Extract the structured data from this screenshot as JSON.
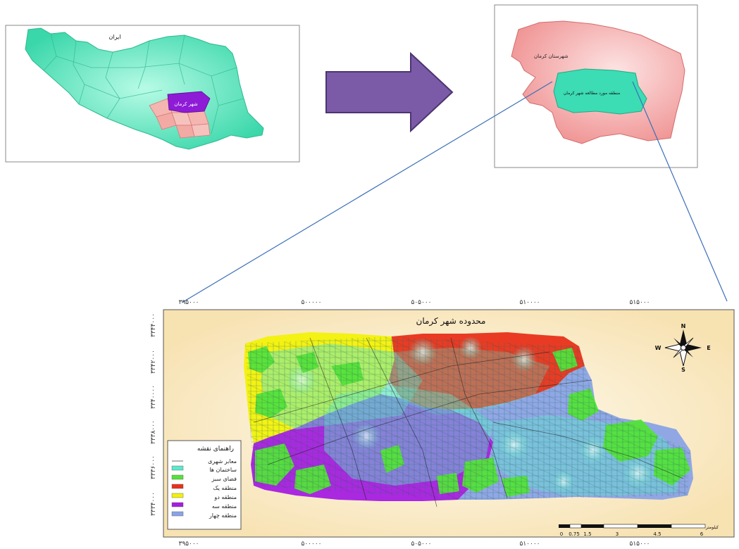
{
  "iran_inset": {
    "country_label": "ایران",
    "city_label": "شهر کرمان"
  },
  "county_inset": {
    "county_label": "شهرستان کرمان",
    "zone_label": "منطقه مورد مطالعه شهر کرمان"
  },
  "main_map": {
    "title": "محدوده شهر کرمان",
    "x_ticks": [
      "۳۹۵۰۰۰",
      "۵۰۰۰۰۰",
      "۵۰۵۰۰۰",
      "۵۱۰۰۰۰",
      "۵۱۵۰۰۰"
    ],
    "y_ticks": [
      "۳۳۴۴۰۰۰",
      "۳۳۴۲۰۰۰",
      "۳۳۴۰۰۰۰",
      "۳۳۳۸۰۰۰",
      "۳۳۳۶۰۰۰",
      "۳۳۳۴۰۰۰"
    ],
    "compass": {
      "n": "N",
      "s": "S",
      "e": "E",
      "w": "W"
    },
    "legend": {
      "title": "راهنمای نقشه",
      "items": [
        {
          "label": "معابر شهری",
          "color": "#b5b5b5"
        },
        {
          "label": "ساختمان ها",
          "color": "#5ce8cc"
        },
        {
          "label": "فضای سبز",
          "color": "#55e23a"
        },
        {
          "label": "منطقه یک",
          "color": "#e8321a"
        },
        {
          "label": "منطقه دو",
          "color": "#f2f20a"
        },
        {
          "label": "منطقه سه",
          "color": "#a51ee0"
        },
        {
          "label": "منطقه چهار",
          "color": "#8aa3e6"
        }
      ]
    },
    "scale_bar": {
      "unit": "کیلومتر",
      "labels": [
        "0",
        "0.75",
        "1.5",
        "3",
        "4.5",
        "6"
      ]
    }
  },
  "colors": {
    "iran_fill": "#4fe3b8",
    "kerman_city": "#8e1bd6",
    "province_pink": "#f5b5b0",
    "county_fill": "#f29a9a",
    "study_zone": "#3cdcb4",
    "arrow_fill": "#7b5aa8",
    "connector": "#3b6fb8",
    "map_background": "#fbe8bf"
  }
}
